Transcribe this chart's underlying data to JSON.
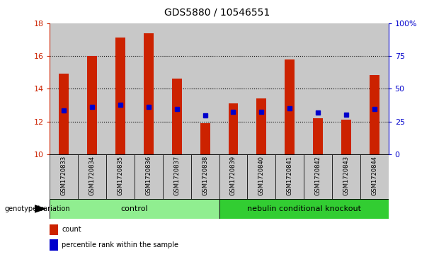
{
  "title": "GDS5880 / 10546551",
  "samples": [
    "GSM1720833",
    "GSM1720834",
    "GSM1720835",
    "GSM1720836",
    "GSM1720837",
    "GSM1720838",
    "GSM1720839",
    "GSM1720840",
    "GSM1720841",
    "GSM1720842",
    "GSM1720843",
    "GSM1720844"
  ],
  "bar_tops": [
    14.9,
    16.0,
    17.1,
    17.4,
    14.6,
    11.9,
    13.1,
    13.4,
    15.8,
    12.2,
    12.1,
    14.85
  ],
  "bar_bottoms": [
    10,
    10,
    10,
    10,
    10,
    10,
    10,
    10,
    10,
    10,
    10,
    10
  ],
  "blue_values": [
    12.65,
    12.9,
    13.0,
    12.9,
    12.75,
    12.35,
    12.6,
    12.6,
    12.8,
    12.55,
    12.4,
    12.75
  ],
  "ylim": [
    10,
    18
  ],
  "y_ticks": [
    10,
    12,
    14,
    16,
    18
  ],
  "right_ylim": [
    0,
    100
  ],
  "right_yticks": [
    0,
    25,
    50,
    75,
    100
  ],
  "right_yticklabels": [
    "0",
    "25",
    "50",
    "75",
    "100%"
  ],
  "bar_color": "#cc2200",
  "blue_color": "#0000cc",
  "group1_label": "control",
  "group2_label": "nebulin conditional knockout",
  "group1_indices": [
    0,
    1,
    2,
    3,
    4,
    5
  ],
  "group2_indices": [
    6,
    7,
    8,
    9,
    10,
    11
  ],
  "group1_bg": "#90ee90",
  "group2_bg": "#32cd32",
  "sample_bg": "#c8c8c8",
  "legend_count": "count",
  "legend_pct": "percentile rank within the sample",
  "genotype_label": "genotype/variation",
  "bar_width": 0.35,
  "blue_marker_size": 5
}
